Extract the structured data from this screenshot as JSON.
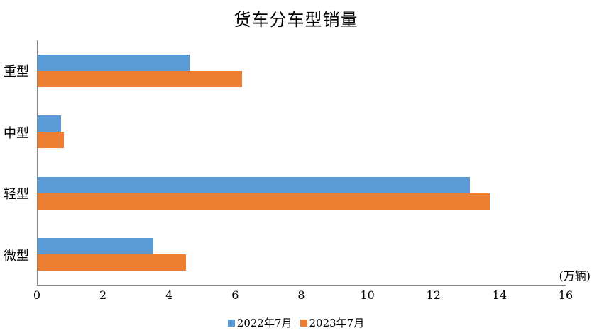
{
  "chart_data": {
    "type": "bar",
    "orientation": "horizontal",
    "title": "货车分车型销量",
    "unit_label": "(万辆)",
    "categories": [
      "重型",
      "中型",
      "轻型",
      "微型"
    ],
    "series": [
      {
        "name": "2022年7月",
        "color": "#5B9BD5",
        "values": [
          4.6,
          0.7,
          13.1,
          3.5
        ]
      },
      {
        "name": "2023年7月",
        "color": "#ED7D31",
        "values": [
          6.2,
          0.8,
          13.7,
          4.5
        ]
      }
    ],
    "x_ticks": [
      0,
      2,
      4,
      6,
      8,
      10,
      12,
      14,
      16
    ],
    "xlim": [
      0,
      16
    ],
    "grid": false,
    "legend_position": "bottom",
    "axis_color": "#848484"
  }
}
